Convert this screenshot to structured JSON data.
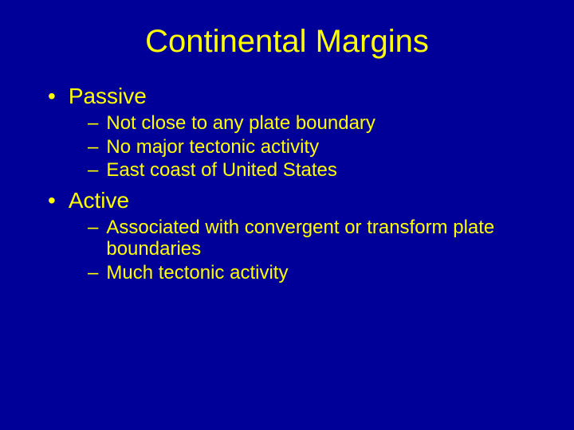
{
  "colors": {
    "background": "#000099",
    "text": "#ffff00"
  },
  "typography": {
    "title_fontsize": 40,
    "l1_fontsize": 28,
    "l2_fontsize": 24,
    "font_family": "Arial"
  },
  "title": "Continental Margins",
  "markers": {
    "l1": "•",
    "l2": "–"
  },
  "sections": [
    {
      "heading": "Passive",
      "items": [
        "Not close to any plate boundary",
        "No major tectonic activity",
        "East coast of United States"
      ]
    },
    {
      "heading": "Active",
      "items": [
        "Associated with convergent or transform plate boundaries",
        "Much tectonic activity"
      ]
    }
  ]
}
